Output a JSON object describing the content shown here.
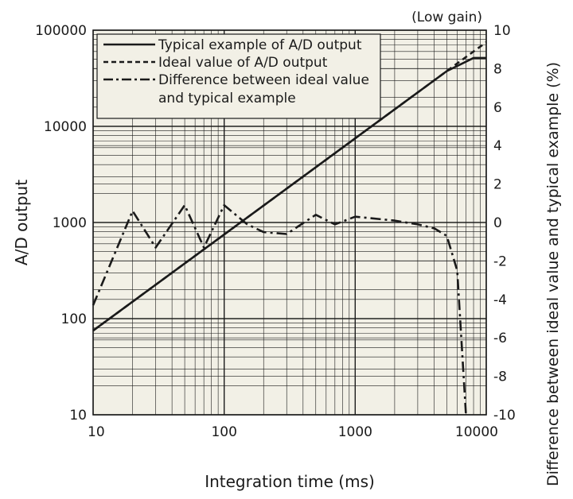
{
  "chart_data": {
    "type": "line",
    "note": "(Low gain)",
    "xlabel": "Integration time (ms)",
    "ylabel": "A/D output",
    "y2label": "Difference between ideal value and typical example (%)",
    "xscale": "log",
    "yscale": "log",
    "xlim": [
      10,
      10000
    ],
    "ylim": [
      10,
      100000
    ],
    "y2lim": [
      -10,
      10
    ],
    "grid": true,
    "legend_position": "top-left",
    "x_ticks": [
      "10",
      "100",
      "1000",
      "10000"
    ],
    "y_ticks": [
      "10",
      "100",
      "1000",
      "10000",
      "100000"
    ],
    "y2_ticks": [
      "-10",
      "-8",
      "-6",
      "-4",
      "-2",
      "0",
      "2",
      "4",
      "6",
      "8",
      "10"
    ],
    "colors": {
      "plot_background": "#f2f0e6",
      "line": "#1a1a1a",
      "grid": "#1a1a1a"
    },
    "series": [
      {
        "name": "Typical example of A/D output",
        "style": "solid",
        "axis": "left",
        "x": [
          10,
          100,
          1000,
          5000,
          8000,
          10000
        ],
        "y": [
          75,
          750,
          7500,
          37500,
          51500,
          51500
        ]
      },
      {
        "name": "Ideal value of A/D output",
        "style": "dashed",
        "axis": "left",
        "x": [
          10,
          100,
          1000,
          8000,
          10000
        ],
        "y": [
          75,
          750,
          7500,
          60000,
          75000
        ]
      },
      {
        "name": "Difference between ideal value and typical example",
        "style": "dash-dot",
        "axis": "right",
        "x": [
          10,
          20,
          30,
          50,
          70,
          100,
          150,
          200,
          300,
          500,
          700,
          1000,
          2000,
          3000,
          4000,
          5000,
          6000,
          7000
        ],
        "y": [
          -4.3,
          0.6,
          -1.3,
          0.9,
          -1.3,
          0.9,
          -0.1,
          -0.5,
          -0.6,
          0.4,
          -0.1,
          0.3,
          0.1,
          -0.1,
          -0.3,
          -0.7,
          -2.5,
          -10
        ]
      }
    ]
  }
}
